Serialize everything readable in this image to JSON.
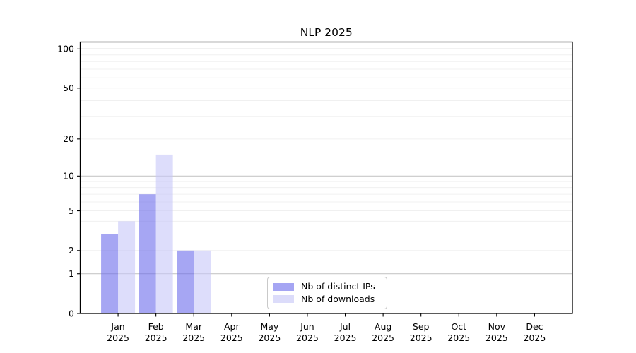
{
  "chart_data": {
    "type": "bar",
    "title": "NLP 2025",
    "categories": [
      "Jan",
      "Feb",
      "Mar",
      "Apr",
      "May",
      "Jun",
      "Jul",
      "Aug",
      "Sep",
      "Oct",
      "Nov",
      "Dec"
    ],
    "year_label": "2025",
    "series": [
      {
        "name": "Nb of distinct IPs",
        "values": [
          3,
          7,
          2,
          0,
          0,
          0,
          0,
          0,
          0,
          0,
          0,
          0
        ],
        "fill": "rgba(106,106,235,0.6)",
        "legend_color": "#a5a5f3"
      },
      {
        "name": "Nb of downloads",
        "values": [
          4,
          15,
          2,
          0,
          0,
          0,
          0,
          0,
          0,
          0,
          0,
          0
        ],
        "fill": "rgba(198,198,248,0.6)",
        "legend_color": "#dcdcfa"
      }
    ],
    "xlabel": "",
    "ylabel": "",
    "yscale": "log1p",
    "ylim": [
      0,
      113
    ],
    "y_ticks": [
      0,
      1,
      2,
      5,
      10,
      20,
      50,
      100
    ],
    "y_gridlines": {
      "major": [
        1,
        10,
        100
      ],
      "minor": [
        2,
        3,
        4,
        5,
        6,
        7,
        8,
        9,
        20,
        30,
        40,
        50,
        60,
        70,
        80,
        90
      ]
    },
    "grid": true,
    "legend_position": "lower center inside plot"
  },
  "colors": {
    "background": "#ffffff",
    "spine": "#000000",
    "grid_major": "#c8c8c8",
    "grid_minor": "#f0f0f0",
    "tick_text": "#000000",
    "legend_border": "#c9c9c9"
  }
}
